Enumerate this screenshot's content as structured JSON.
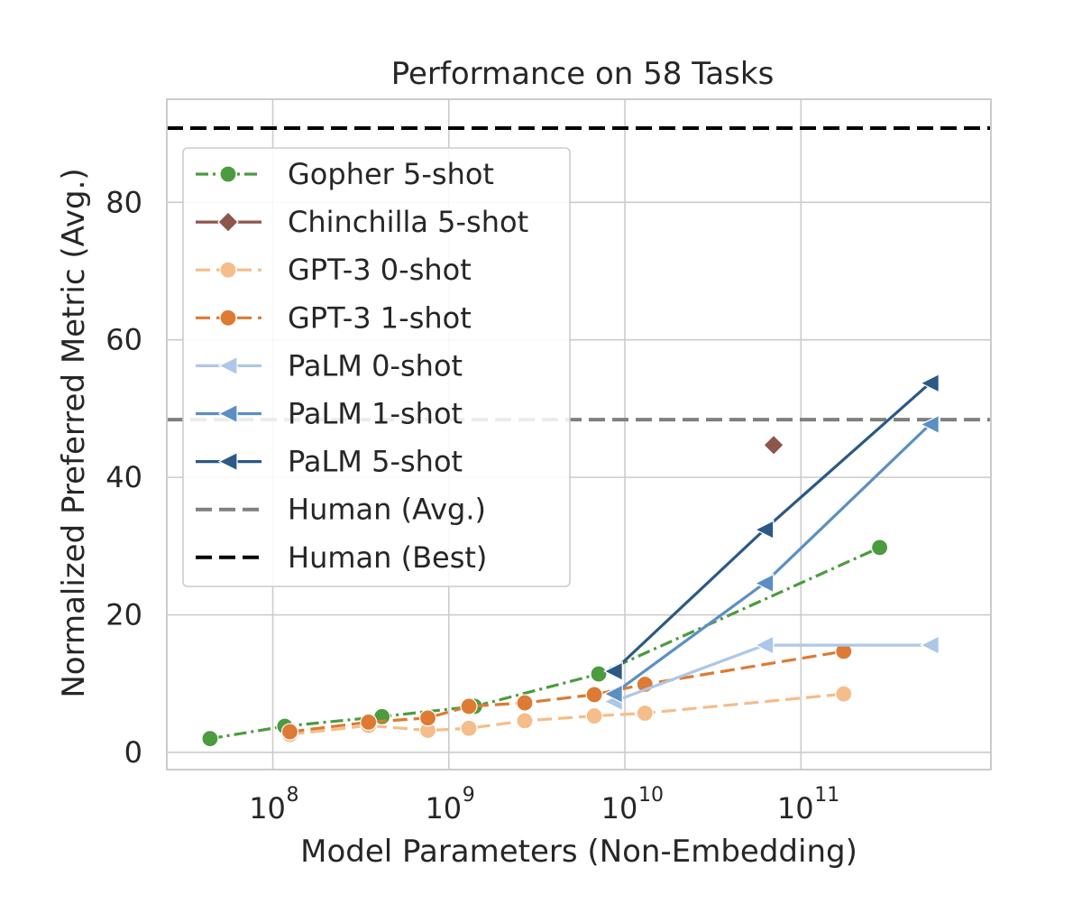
{
  "chart_data": {
    "type": "line",
    "title": "Performance on 58 Tasks",
    "xlabel": "Model Parameters (Non-Embedding)",
    "ylabel": "Normalized Preferred Metric (Avg.)",
    "xscale": "log",
    "xlim": [
      25000000,
      1200000000000
    ],
    "ylim": [
      -2.5,
      95
    ],
    "x_ticks": [
      {
        "value": 100000000,
        "base": "10",
        "exp": "8"
      },
      {
        "value": 1000000000,
        "base": "10",
        "exp": "9"
      },
      {
        "value": 10000000000,
        "base": "10",
        "exp": "10"
      },
      {
        "value": 100000000000,
        "base": "10",
        "exp": "11"
      }
    ],
    "y_ticks": [
      {
        "value": 0,
        "label": "0"
      },
      {
        "value": 20,
        "label": "20"
      },
      {
        "value": 40,
        "label": "40"
      },
      {
        "value": 60,
        "label": "60"
      },
      {
        "value": 80,
        "label": "80"
      }
    ],
    "grid": true,
    "legend_position": "upper-left",
    "series": [
      {
        "name": "Gopher 5-shot",
        "color": "#4c9b3f",
        "dash": "dashdot",
        "marker": "circle",
        "points": [
          [
            44000000,
            2.0
          ],
          [
            117000000,
            3.8
          ],
          [
            417000000,
            5.2
          ],
          [
            1400000000,
            6.7
          ],
          [
            7100000000,
            11.4
          ],
          [
            280000000000,
            29.8
          ]
        ]
      },
      {
        "name": "Chinchilla 5-shot",
        "color": "#8c564b",
        "dash": "solid",
        "marker": "diamond",
        "points": [
          [
            70000000000,
            44.7
          ]
        ]
      },
      {
        "name": "GPT-3 0-shot",
        "color": "#f4bd8a",
        "dash": "dashed",
        "marker": "circle",
        "points": [
          [
            125000000,
            2.6
          ],
          [
            350000000,
            3.9
          ],
          [
            760000000,
            3.2
          ],
          [
            1300000000,
            3.5
          ],
          [
            2700000000,
            4.6
          ],
          [
            6700000000,
            5.3
          ],
          [
            13000000000,
            5.7
          ],
          [
            175000000000,
            8.5
          ]
        ]
      },
      {
        "name": "GPT-3 1-shot",
        "color": "#dd7a33",
        "dash": "dashed",
        "marker": "circle",
        "points": [
          [
            125000000,
            3.0
          ],
          [
            350000000,
            4.4
          ],
          [
            760000000,
            5.0
          ],
          [
            1300000000,
            6.7
          ],
          [
            2700000000,
            7.2
          ],
          [
            6700000000,
            8.4
          ],
          [
            13000000000,
            9.9
          ],
          [
            175000000000,
            14.7
          ]
        ]
      },
      {
        "name": "PaLM 0-shot",
        "color": "#aec7e8",
        "dash": "solid",
        "marker": "triangle-left",
        "points": [
          [
            8600000000,
            7.4
          ],
          [
            62000000000,
            15.6
          ],
          [
            540000000000,
            15.6
          ]
        ]
      },
      {
        "name": "PaLM 1-shot",
        "color": "#5b8fc4",
        "dash": "solid",
        "marker": "triangle-left",
        "points": [
          [
            8600000000,
            8.5
          ],
          [
            62000000000,
            24.6
          ],
          [
            540000000000,
            47.7
          ]
        ]
      },
      {
        "name": "PaLM 5-shot",
        "color": "#2c5985",
        "dash": "solid",
        "marker": "triangle-left",
        "points": [
          [
            8600000000,
            11.8
          ],
          [
            62000000000,
            32.4
          ],
          [
            540000000000,
            53.7
          ]
        ]
      }
    ],
    "reference_lines": [
      {
        "name": "Human (Avg.)",
        "value": 48.4,
        "color": "#7f7f7f",
        "dash": "dashed"
      },
      {
        "name": "Human (Best)",
        "value": 90.8,
        "color": "#000000",
        "dash": "dashed"
      }
    ]
  }
}
